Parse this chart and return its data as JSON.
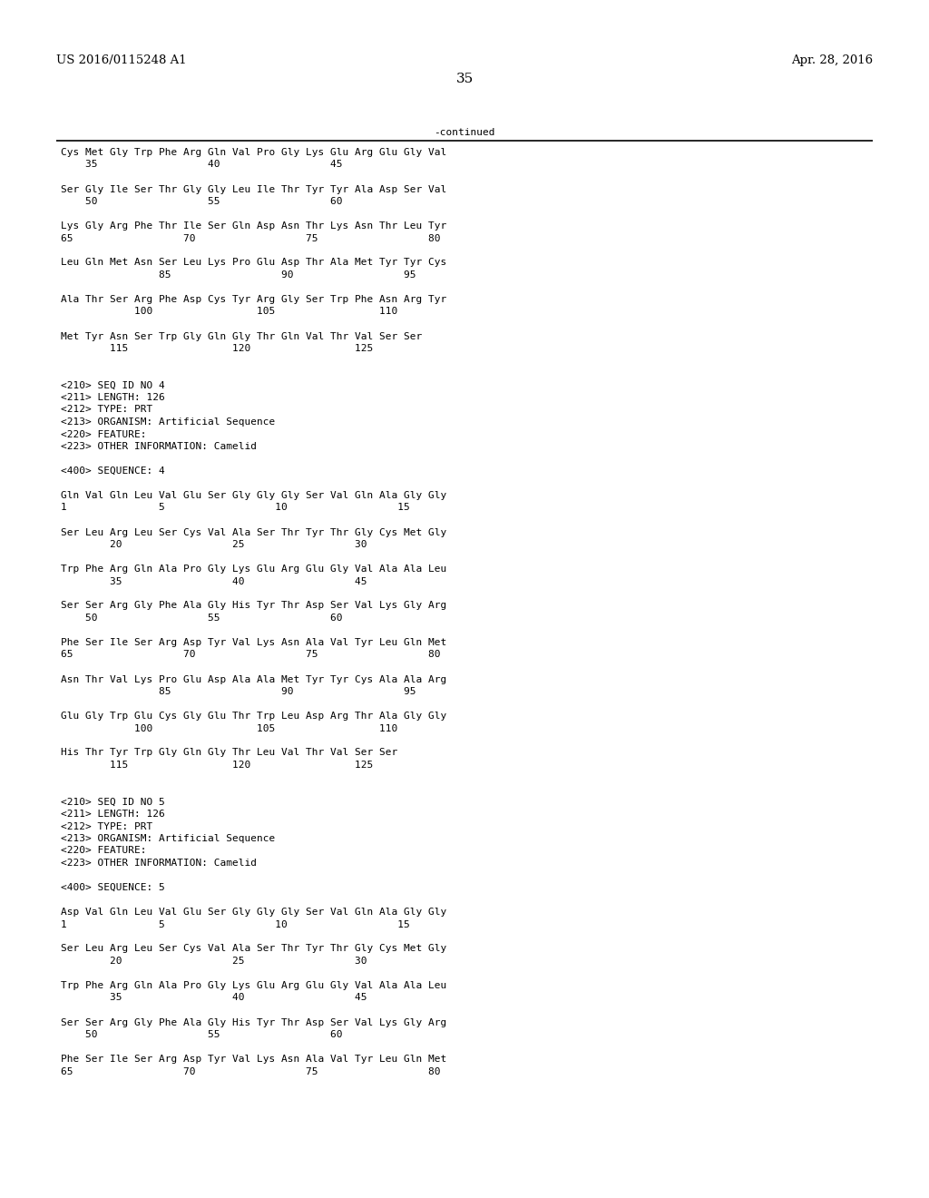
{
  "bg_color": "#ffffff",
  "top_left_text": "US 2016/0115248 A1",
  "top_right_text": "Apr. 28, 2016",
  "page_number": "35",
  "continued_text": "-continued",
  "font_size": 8.0,
  "header_font_size": 9.5,
  "page_num_font_size": 11,
  "content": [
    "Cys Met Gly Trp Phe Arg Gln Val Pro Gly Lys Glu Arg Glu Gly Val",
    "    35                  40                  45",
    "",
    "Ser Gly Ile Ser Thr Gly Gly Leu Ile Thr Tyr Tyr Ala Asp Ser Val",
    "    50                  55                  60",
    "",
    "Lys Gly Arg Phe Thr Ile Ser Gln Asp Asn Thr Lys Asn Thr Leu Tyr",
    "65                  70                  75                  80",
    "",
    "Leu Gln Met Asn Ser Leu Lys Pro Glu Asp Thr Ala Met Tyr Tyr Cys",
    "                85                  90                  95",
    "",
    "Ala Thr Ser Arg Phe Asp Cys Tyr Arg Gly Ser Trp Phe Asn Arg Tyr",
    "            100                 105                 110",
    "",
    "Met Tyr Asn Ser Trp Gly Gln Gly Thr Gln Val Thr Val Ser Ser",
    "        115                 120                 125",
    "",
    "",
    "<210> SEQ ID NO 4",
    "<211> LENGTH: 126",
    "<212> TYPE: PRT",
    "<213> ORGANISM: Artificial Sequence",
    "<220> FEATURE:",
    "<223> OTHER INFORMATION: Camelid",
    "",
    "<400> SEQUENCE: 4",
    "",
    "Gln Val Gln Leu Val Glu Ser Gly Gly Gly Ser Val Gln Ala Gly Gly",
    "1               5                  10                  15",
    "",
    "Ser Leu Arg Leu Ser Cys Val Ala Ser Thr Tyr Thr Gly Cys Met Gly",
    "        20                  25                  30",
    "",
    "Trp Phe Arg Gln Ala Pro Gly Lys Glu Arg Glu Gly Val Ala Ala Leu",
    "        35                  40                  45",
    "",
    "Ser Ser Arg Gly Phe Ala Gly His Tyr Thr Asp Ser Val Lys Gly Arg",
    "    50                  55                  60",
    "",
    "Phe Ser Ile Ser Arg Asp Tyr Val Lys Asn Ala Val Tyr Leu Gln Met",
    "65                  70                  75                  80",
    "",
    "Asn Thr Val Lys Pro Glu Asp Ala Ala Met Tyr Tyr Cys Ala Ala Arg",
    "                85                  90                  95",
    "",
    "Glu Gly Trp Glu Cys Gly Glu Thr Trp Leu Asp Arg Thr Ala Gly Gly",
    "            100                 105                 110",
    "",
    "His Thr Tyr Trp Gly Gln Gly Thr Leu Val Thr Val Ser Ser",
    "        115                 120                 125",
    "",
    "",
    "<210> SEQ ID NO 5",
    "<211> LENGTH: 126",
    "<212> TYPE: PRT",
    "<213> ORGANISM: Artificial Sequence",
    "<220> FEATURE:",
    "<223> OTHER INFORMATION: Camelid",
    "",
    "<400> SEQUENCE: 5",
    "",
    "Asp Val Gln Leu Val Glu Ser Gly Gly Gly Ser Val Gln Ala Gly Gly",
    "1               5                  10                  15",
    "",
    "Ser Leu Arg Leu Ser Cys Val Ala Ser Thr Tyr Thr Gly Cys Met Gly",
    "        20                  25                  30",
    "",
    "Trp Phe Arg Gln Ala Pro Gly Lys Glu Arg Glu Gly Val Ala Ala Leu",
    "        35                  40                  45",
    "",
    "Ser Ser Arg Gly Phe Ala Gly His Tyr Thr Asp Ser Val Lys Gly Arg",
    "    50                  55                  60",
    "",
    "Phe Ser Ile Ser Arg Asp Tyr Val Lys Asn Ala Val Tyr Leu Gln Met",
    "65                  70                  75                  80"
  ]
}
